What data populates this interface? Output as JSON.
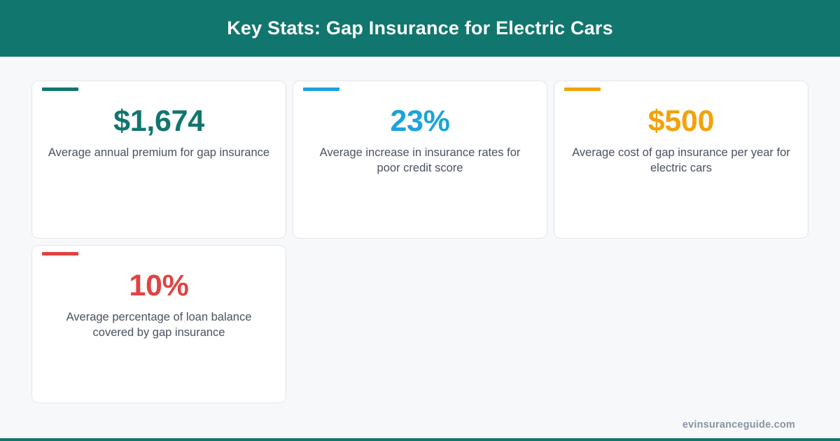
{
  "header": {
    "title": "Key Stats: Gap Insurance for Electric Cars"
  },
  "stats": [
    {
      "value": "$1,674",
      "description": "Average annual premium for gap insurance",
      "accent_color": "#11766d"
    },
    {
      "value": "23%",
      "description": "Average increase in insurance rates for poor credit score",
      "accent_color": "#1ba3dc"
    },
    {
      "value": "$500",
      "description": "Average cost of gap insurance per year for electric cars",
      "accent_color": "#f2a20c"
    },
    {
      "value": "10%",
      "description": "Average percentage of loan balance covered by gap insurance",
      "accent_color": "#e04343"
    }
  ],
  "footer": {
    "domain": "evinsuranceguide.com"
  },
  "colors": {
    "brand": "#11766d",
    "background": "#f7f8fa",
    "text_muted": "#4a5160"
  }
}
